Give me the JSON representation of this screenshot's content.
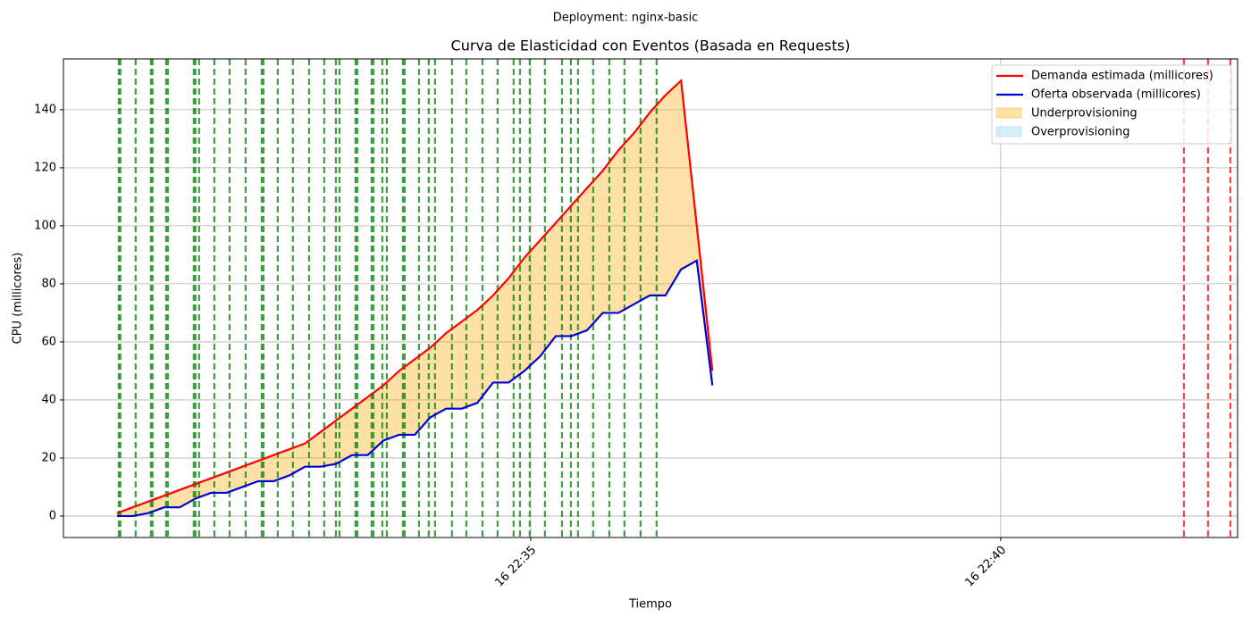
{
  "chart_data": {
    "type": "line",
    "suptitle": "Deployment: nginx-basic",
    "title": "Curva de Elasticidad con Eventos (Basada en Requests)",
    "xlabel": "Tiempo",
    "ylabel": "CPU (millicores)",
    "x": [
      30.6,
      30.767,
      30.933,
      31.1,
      31.267,
      31.433,
      31.6,
      31.767,
      31.933,
      32.1,
      32.267,
      32.433,
      32.6,
      32.767,
      32.933,
      33.1,
      33.267,
      33.433,
      33.6,
      33.767,
      33.933,
      34.1,
      34.267,
      34.433,
      34.6,
      34.767,
      34.933,
      35.1,
      35.267,
      35.433,
      35.6,
      35.767,
      35.933,
      36.1,
      36.267,
      36.433,
      36.6,
      36.767,
      36.933
    ],
    "series": [
      {
        "name": "Demanda estimada (millicores)",
        "color": "#ff0000",
        "values": [
          1,
          3,
          5,
          7,
          9,
          11,
          13,
          15,
          17,
          19,
          21,
          23,
          25,
          29,
          33,
          37,
          41,
          45,
          50,
          54,
          58,
          63,
          67,
          71,
          76,
          82,
          89,
          95,
          101,
          107,
          113,
          119,
          126,
          132,
          139,
          145,
          150,
          100,
          50
        ]
      },
      {
        "name": "Oferta observada (millicores)",
        "color": "#0000dd",
        "values": [
          0,
          0,
          1,
          3,
          3,
          6,
          8,
          8,
          10,
          12,
          12,
          14,
          17,
          17,
          18,
          21,
          21,
          26,
          28,
          28,
          34,
          37,
          37,
          39,
          46,
          46,
          50,
          55,
          62,
          62,
          64,
          70,
          70,
          73,
          76,
          76,
          85,
          88,
          45
        ]
      }
    ],
    "areas": [
      {
        "name": "Underprovisioning",
        "color": "#ffa500"
      },
      {
        "name": "Overprovisioning",
        "color": "#87ceeb"
      }
    ],
    "event_lines": [
      {
        "color": "#008000",
        "x": [
          30.618,
          30.636,
          30.798,
          30.96,
          30.978,
          31.122,
          31.141,
          31.416,
          31.434,
          31.473,
          31.635,
          31.797,
          31.968,
          32.139,
          32.158,
          32.31,
          32.471,
          32.643,
          32.804,
          32.928,
          32.966,
          33.137,
          33.156,
          33.308,
          33.327,
          33.422,
          33.47,
          33.641,
          33.66,
          33.812,
          33.916,
          33.983,
          34.163,
          34.316,
          34.487,
          34.648,
          34.819,
          34.886,
          34.99,
          35.152,
          35.333,
          35.428,
          35.504,
          35.665,
          35.837,
          35.998,
          36.169,
          36.34
        ]
      },
      {
        "color": "#ff0000",
        "x": [
          41.949,
          42.205,
          42.443
        ]
      }
    ],
    "xlim": [
      30.03,
      42.52
    ],
    "xticks": [
      {
        "value": 35,
        "label": "16 22:35"
      },
      {
        "value": 40,
        "label": "16 22:40"
      }
    ],
    "ylim": [
      -7.4,
      157.5
    ],
    "yticks": [
      0,
      20,
      40,
      60,
      80,
      100,
      120,
      140
    ],
    "grid": true,
    "legend": "upper right"
  }
}
